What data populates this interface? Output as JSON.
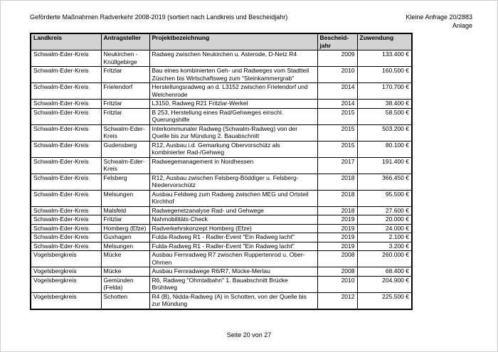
{
  "page": {
    "title": "Geförderte Maßnahmen Radverkehr 2008-2019 (sortiert nach Landkreis und Bescheidjahr)",
    "reference": "Kleine Anfrage 20/2883",
    "reference_sub": "Anlage",
    "footer": "Seite 20 von 27"
  },
  "colors": {
    "table_header_bg": "#d3d3d3",
    "table_border": "#000000"
  },
  "table": {
    "columns": [
      "Landkreis",
      "Antragsteller",
      "Projektbezeichnung",
      "Bescheid-jahr",
      "Zuwendung"
    ],
    "rows": [
      {
        "landkreis": "Schwalm-Eder-Kreis",
        "antragsteller": "Neukirchen - Knüllgebirge",
        "projekt": "Radweg zwischen Neukirchen u. Asterode, D-Netz R4",
        "jahr": "2009",
        "zuwendung": "133.400 €"
      },
      {
        "landkreis": "Schwalm-Eder-Kreis",
        "antragsteller": "Fritzlar",
        "projekt": "Bau eines kombinierten Geh- und Radweges vom Stadtteil Züschen bis Wirtschaftsweg zum \"Steinkammergrab\"",
        "jahr": "2010",
        "zuwendung": "160.500 €"
      },
      {
        "landkreis": "Schwalm-Eder-Kreis",
        "antragsteller": "Frielendorf",
        "projekt": "Herstellungsradweg an d. L3152 zwischen Frielendorf und Welchenrode",
        "jahr": "2014",
        "zuwendung": "170.700 €"
      },
      {
        "landkreis": "Schwalm-Eder-Kreis",
        "antragsteller": "Fritzlar",
        "projekt": "L3150, Radweg R21 Fritzlar-Werkel",
        "jahr": "2014",
        "zuwendung": "38.400 €"
      },
      {
        "landkreis": "Schwalm-Eder-Kreis",
        "antragsteller": "Fritzlar",
        "projekt": "B 253, Herstellung eines Rad/Gehweges einschl. Querungshilfe",
        "jahr": "2015",
        "zuwendung": "58.500 €"
      },
      {
        "landkreis": "Schwalm-Eder-Kreis",
        "antragsteller": "Schwalm-Eder-Kreis",
        "projekt": "Interkommunaler Radweg (Schwalm-Radweg) von der Quelle bis zur Mündung 2. Bauabschnitt",
        "jahr": "2015",
        "zuwendung": "503.200 €"
      },
      {
        "landkreis": "Schwalm-Eder-Kreis",
        "antragsteller": "Gudensberg",
        "projekt": "R12, Ausbau i.d. Gemarkung Obervorschütz als kombinierter Rad-/Gehweg",
        "jahr": "2015",
        "zuwendung": "80.100 €"
      },
      {
        "landkreis": "Schwalm-Eder-Kreis",
        "antragsteller": "Schwalm-Eder-Kreis",
        "projekt": "Radwegemanagement in Nordhessen",
        "jahr": "2017",
        "zuwendung": "191.400 €"
      },
      {
        "landkreis": "Schwalm-Eder-Kreis",
        "antragsteller": "Felsberg",
        "projekt": "R12, Ausbau zwischen Felsberg-Böddiger u. Felsberg-Niedervorschütz",
        "jahr": "2018",
        "zuwendung": "366.450 €"
      },
      {
        "landkreis": "Schwalm-Eder-Kreis",
        "antragsteller": "Melsungen",
        "projekt": "Ausbau Feldweg zum Radweg zwischen MEG und Ortsteil Kirchhof",
        "jahr": "2018",
        "zuwendung": "95.500 €"
      },
      {
        "landkreis": "Schwalm-Eder-Kreis",
        "antragsteller": "Malsfeld",
        "projekt": "Radwegenetzanalyse Rad- und Gehwege",
        "jahr": "2018",
        "zuwendung": "27.600 €"
      },
      {
        "landkreis": "Schwalm-Eder-Kreis",
        "antragsteller": "Fritzlar",
        "projekt": "Nahmobilitäts-Check",
        "jahr": "2019",
        "zuwendung": "20.000 €"
      },
      {
        "landkreis": "Schwalm-Eder-Kreis",
        "antragsteller": "Homberg (Efze)",
        "projekt": "Radverkehrskonzept Homberg (Efze)",
        "jahr": "2019",
        "zuwendung": "24.000 €"
      },
      {
        "landkreis": "Schwalm-Eder-Kreis",
        "antragsteller": "Guxhagen",
        "projekt": "Fulda-Radweg R1 - Radler-Event \"Ein Radweg lacht\"",
        "jahr": "2019",
        "zuwendung": "2.100 €"
      },
      {
        "landkreis": "Schwalm-Eder-Kreis",
        "antragsteller": "Melsungen",
        "projekt": "Fulda-Radweg R1 - Radler-Event \"Ein Radweg lacht\"",
        "jahr": "2019",
        "zuwendung": "3.200 €"
      },
      {
        "landkreis": "Vogelsbergkreis",
        "antragsteller": "Mücke",
        "projekt": "Ausbau Fernradweg R7 zwischen Ruppertenrod u. Ober-Ohmen",
        "jahr": "2008",
        "zuwendung": "260.000 €"
      },
      {
        "landkreis": "Vogelsbergkreis",
        "antragsteller": "Mücke",
        "projekt": "Ausbau Fernradwege R6/R7, Mücke-Merlau",
        "jahr": "2008",
        "zuwendung": "68.400 €"
      },
      {
        "landkreis": "Vogelsbergkreis",
        "antragsteller": "Gemünden (Felda)",
        "projekt": "R6, Radweg \"Ohmtalbahn\" 1. Bauabschnitt Brücke Brühlweg",
        "jahr": "2010",
        "zuwendung": "204.900 €"
      },
      {
        "landkreis": "Vogelsbergkreis",
        "antragsteller": "Schotten",
        "projekt": "R4 (B), Nidda-Radweg (A) in Schotten, von der Quelle bis zur Mündung",
        "jahr": "2012",
        "zuwendung": "225.500 €"
      }
    ]
  }
}
